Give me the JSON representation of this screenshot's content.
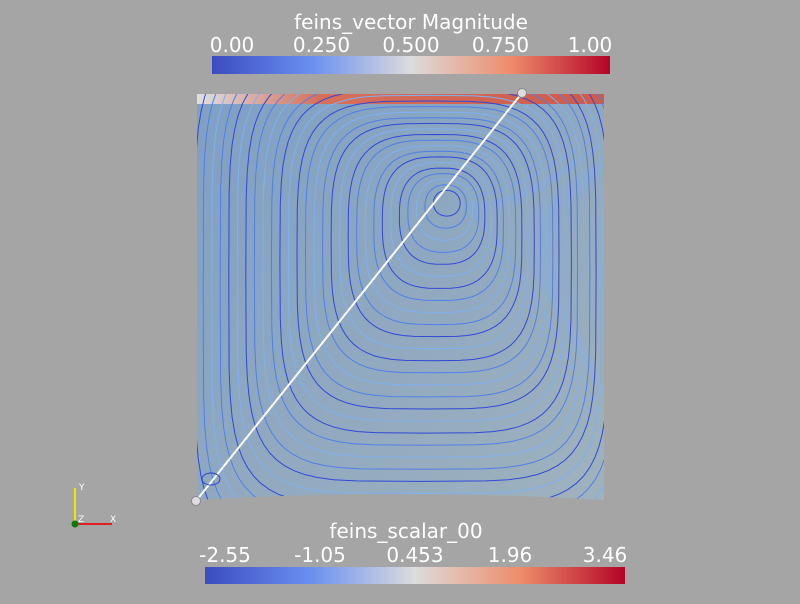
{
  "colorbars": [
    {
      "title": "feins_vector Magnitude",
      "labels": [
        "0.00",
        "0.250",
        "0.500",
        "0.750",
        "1.00"
      ]
    },
    {
      "title": "feins_scalar_00",
      "labels": [
        "-2.55",
        "-1.05",
        "0.453",
        "1.96",
        "3.46"
      ]
    }
  ],
  "axes": {
    "x": "X",
    "y": "Y",
    "z": "Z"
  }
}
